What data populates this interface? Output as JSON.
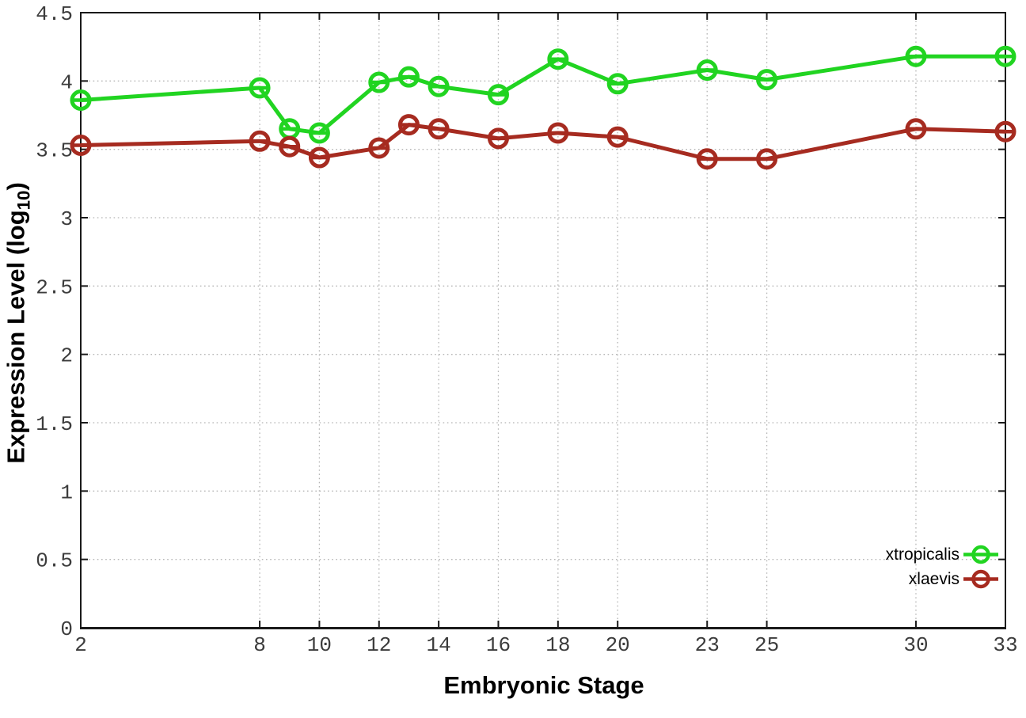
{
  "figure": {
    "xlabel": "Embryonic Stage",
    "ylabel_prefix": "Expression Level (log",
    "ylabel_sub": "10",
    "ylabel_suffix": ")",
    "background": "#ffffff"
  },
  "chart_data": {
    "type": "line",
    "title": "",
    "xlabel": "Embryonic Stage",
    "ylabel": "Expression Level (log10)",
    "x": [
      2,
      8,
      9,
      10,
      12,
      13,
      14,
      16,
      18,
      20,
      23,
      25,
      30,
      33
    ],
    "series": [
      {
        "name": "xtropicalis",
        "color": "#21d421",
        "values": [
          3.86,
          3.95,
          3.65,
          3.62,
          3.99,
          4.03,
          3.96,
          3.9,
          4.16,
          3.98,
          4.08,
          4.01,
          4.18,
          4.18
        ]
      },
      {
        "name": "xlaevis",
        "color": "#a62b20",
        "values": [
          3.53,
          3.56,
          3.52,
          3.44,
          3.51,
          3.68,
          3.65,
          3.58,
          3.62,
          3.59,
          3.43,
          3.43,
          3.65,
          3.63
        ]
      }
    ],
    "xlim": [
      2,
      33
    ],
    "ylim": [
      0,
      4.5
    ],
    "xticks": [
      2,
      8,
      10,
      12,
      14,
      16,
      18,
      20,
      23,
      25,
      30,
      33
    ],
    "yticks": [
      0,
      0.5,
      1,
      1.5,
      2,
      2.5,
      3,
      3.5,
      4,
      4.5
    ],
    "grid": true,
    "grid_style": "dotted",
    "legend_position": "bottom-right",
    "marker": "open-circle-with-error-dash",
    "axis_color": "#1a1a1a",
    "grid_color": "#b5b5b5",
    "tick_label_color": "#3c3c3c"
  }
}
